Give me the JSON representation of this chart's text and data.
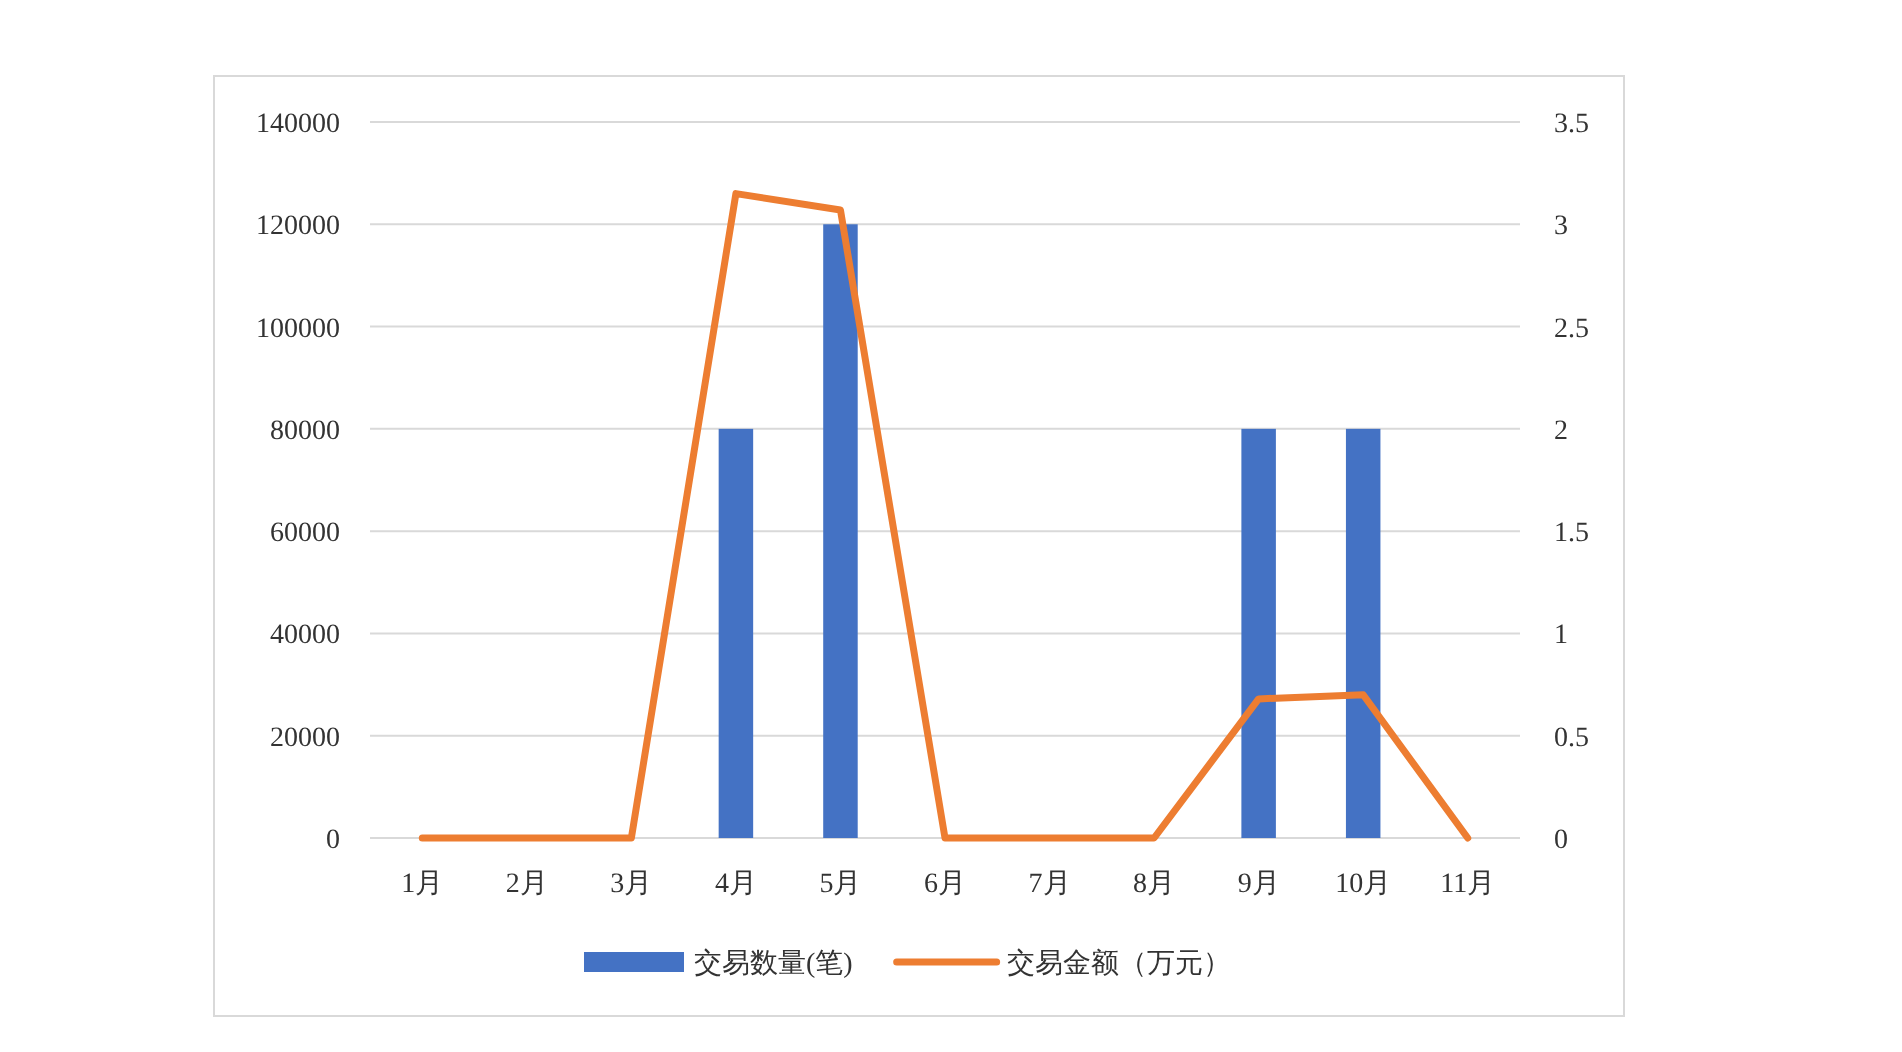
{
  "chart_data": {
    "type": "bar",
    "categories": [
      "1月",
      "2月",
      "3月",
      "4月",
      "5月",
      "6月",
      "7月",
      "8月",
      "9月",
      "10月",
      "11月"
    ],
    "series": [
      {
        "name": "交易数量(笔)",
        "color": "#4472c4",
        "values": [
          0,
          0,
          0,
          80000,
          120000,
          0,
          0,
          0,
          80000,
          80000,
          0
        ]
      },
      {
        "name": "交易金额（万元）",
        "type": "line",
        "axis": "y2",
        "color": "#ed7d31",
        "values": [
          0,
          0,
          0,
          3.15,
          3.07,
          0,
          0,
          0,
          0.68,
          0.7,
          0
        ]
      }
    ],
    "ylim": [
      0,
      140000
    ],
    "yticks": [
      0,
      20000,
      40000,
      60000,
      80000,
      100000,
      120000,
      140000
    ],
    "y2lim": [
      0,
      3.5
    ],
    "y2ticks": [
      0,
      0.5,
      1,
      1.5,
      2,
      2.5,
      3,
      3.5
    ],
    "grid": "y",
    "legend": "bottom",
    "marker": "none",
    "line_style": "solid"
  }
}
